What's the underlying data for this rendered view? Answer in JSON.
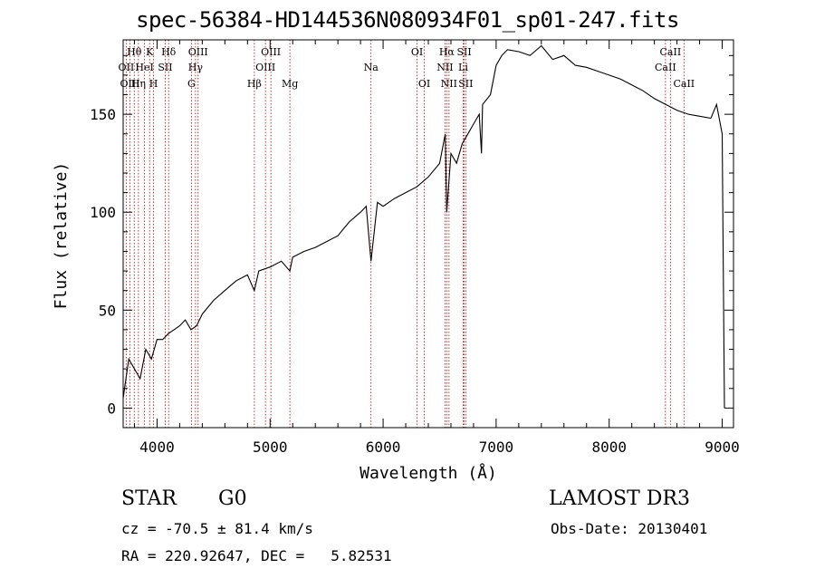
{
  "chart_data": {
    "type": "line",
    "title": "spec-56384-HD144536N080934F01_sp01-247.fits",
    "xlabel": "Wavelength (Å)",
    "ylabel": "Flux (relative)",
    "xlim": [
      3700,
      9100
    ],
    "ylim": [
      -10,
      188
    ],
    "x_ticks": [
      4000,
      5000,
      6000,
      7000,
      8000,
      9000
    ],
    "y_ticks": [
      0,
      50,
      100,
      150
    ],
    "grid": false,
    "series": [
      {
        "name": "spectrum",
        "x": [
          3700,
          3750,
          3800,
          3850,
          3900,
          3950,
          4000,
          4050,
          4100,
          4150,
          4200,
          4250,
          4300,
          4350,
          4400,
          4500,
          4600,
          4700,
          4800,
          4860,
          4900,
          5000,
          5100,
          5175,
          5200,
          5300,
          5400,
          5500,
          5600,
          5700,
          5800,
          5850,
          5893,
          5950,
          6000,
          6100,
          6200,
          6300,
          6400,
          6500,
          6550,
          6563,
          6600,
          6650,
          6700,
          6750,
          6800,
          6850,
          6870,
          6880,
          6950,
          7000,
          7050,
          7100,
          7200,
          7300,
          7400,
          7500,
          7600,
          7700,
          7800,
          7900,
          8000,
          8100,
          8200,
          8300,
          8400,
          8500,
          8600,
          8700,
          8800,
          8900,
          8950,
          9000,
          9020
        ],
        "values": [
          5,
          25,
          20,
          15,
          30,
          25,
          35,
          35,
          38,
          40,
          42,
          45,
          40,
          42,
          48,
          55,
          60,
          65,
          68,
          60,
          70,
          72,
          75,
          70,
          77,
          80,
          82,
          85,
          88,
          95,
          100,
          103,
          75,
          105,
          103,
          107,
          110,
          113,
          118,
          125,
          140,
          100,
          130,
          125,
          135,
          140,
          145,
          150,
          130,
          155,
          160,
          175,
          180,
          183,
          182,
          180,
          185,
          178,
          180,
          175,
          174,
          172,
          170,
          168,
          165,
          162,
          158,
          155,
          152,
          150,
          149,
          148,
          155,
          140,
          0
        ]
      }
    ],
    "lines": [
      {
        "label": "Hθ",
        "x": 3798,
        "row": 0
      },
      {
        "label": "OII",
        "x": 3727,
        "row": 1
      },
      {
        "label": "OIII",
        "x": 3760,
        "row": 2
      },
      {
        "label": "K",
        "x": 3934,
        "row": 0
      },
      {
        "label": "HeI",
        "x": 3889,
        "row": 1
      },
      {
        "label": "Hη",
        "x": 3835,
        "row": 2
      },
      {
        "label": "SII",
        "x": 4072,
        "row": 1
      },
      {
        "label": "H",
        "x": 3969,
        "row": 2
      },
      {
        "label": "Hδ",
        "x": 4102,
        "row": 0
      },
      {
        "label": "OIII",
        "x": 4363,
        "row": 0
      },
      {
        "label": "Hγ",
        "x": 4340,
        "row": 1
      },
      {
        "label": "G",
        "x": 4304,
        "row": 2
      },
      {
        "label": "OIII",
        "x": 5007,
        "row": 0
      },
      {
        "label": "OIII",
        "x": 4959,
        "row": 1
      },
      {
        "label": "Hβ",
        "x": 4861,
        "row": 2
      },
      {
        "label": "Mg",
        "x": 5175,
        "row": 2
      },
      {
        "label": "Na",
        "x": 5893,
        "row": 1
      },
      {
        "label": "OI",
        "x": 6300,
        "row": 0
      },
      {
        "label": "OI",
        "x": 6364,
        "row": 2
      },
      {
        "label": "Hα",
        "x": 6563,
        "row": 0
      },
      {
        "label": "NII",
        "x": 6548,
        "row": 1
      },
      {
        "label": "NII",
        "x": 6583,
        "row": 2
      },
      {
        "label": "SII",
        "x": 6717,
        "row": 0
      },
      {
        "label": "Li",
        "x": 6708,
        "row": 1
      },
      {
        "label": "SII",
        "x": 6731,
        "row": 2
      },
      {
        "label": "CaII",
        "x": 8542,
        "row": 0
      },
      {
        "label": "CaII",
        "x": 8498,
        "row": 1
      },
      {
        "label": "CaII",
        "x": 8662,
        "row": 2
      }
    ]
  },
  "info": {
    "class": "STAR",
    "subclass": "G0",
    "survey": "LAMOST DR3",
    "redshift": "cz = -70.5 ± 81.4 km/s",
    "obs_date": "Obs-Date: 20130401",
    "coords": "RA = 220.92647, DEC =   5.82531"
  }
}
